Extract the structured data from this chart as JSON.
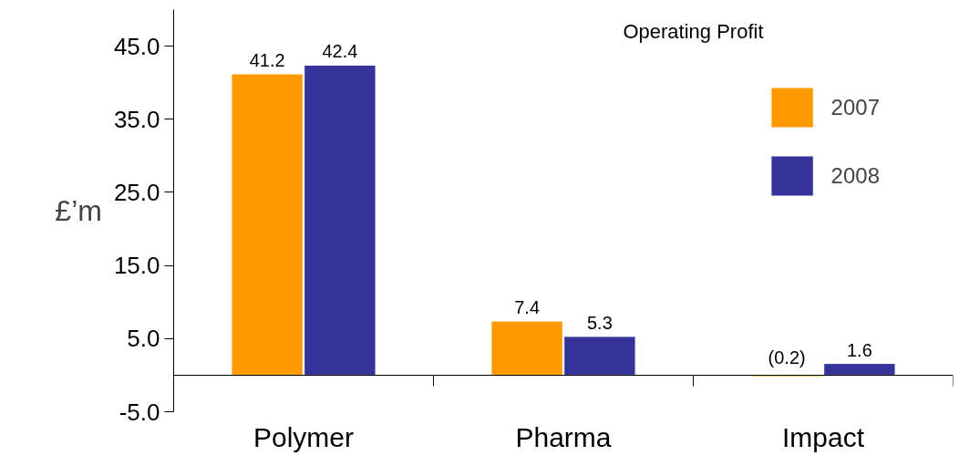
{
  "chart_data": {
    "type": "bar",
    "title": "Operating Profit",
    "ylabel": "£’m",
    "categories": [
      "Polymer",
      "Pharma",
      "Impact"
    ],
    "series": [
      {
        "name": "2007",
        "color": "#ff9900",
        "values": [
          41.2,
          7.4,
          -0.2
        ],
        "value_labels": [
          "41.2",
          "7.4",
          "(0.2)"
        ]
      },
      {
        "name": "2008",
        "color": "#333399",
        "values": [
          42.4,
          5.3,
          1.6
        ],
        "value_labels": [
          "42.4",
          "5.3",
          "1.6"
        ]
      }
    ],
    "ylim": [
      -5,
      50
    ],
    "yticks": [
      {
        "value": -5,
        "label": "-5.0"
      },
      {
        "value": 5,
        "label": "5.0"
      },
      {
        "value": 15,
        "label": "15.0"
      },
      {
        "value": 25,
        "label": "25.0"
      },
      {
        "value": 35,
        "label": "35.0"
      },
      {
        "value": 45,
        "label": "45.0"
      }
    ],
    "grid": false,
    "legend": "top right"
  }
}
